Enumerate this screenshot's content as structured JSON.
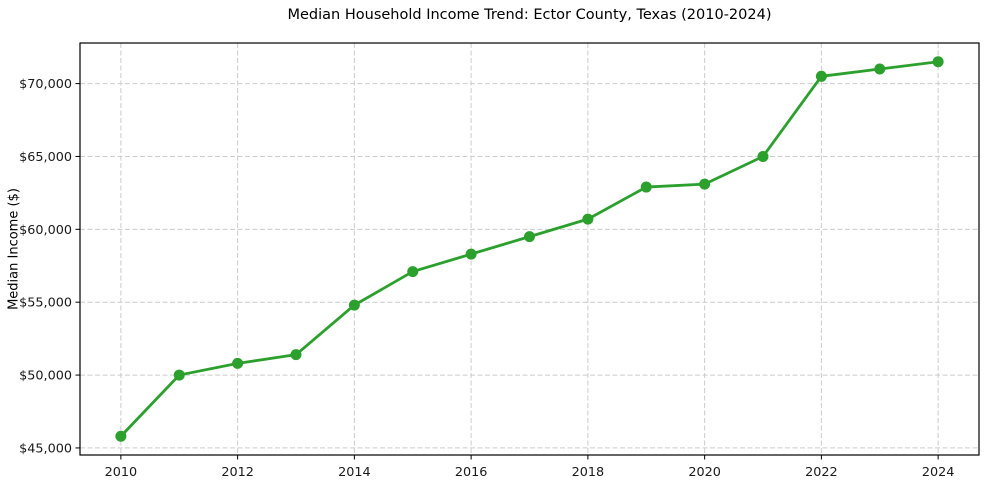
{
  "chart_data": {
    "type": "line",
    "title": "Median Household Income Trend: Ector County, Texas (2010-2024)",
    "ylabel": "Median Income ($)",
    "xlabel": "",
    "x": [
      2010,
      2011,
      2012,
      2013,
      2014,
      2015,
      2016,
      2017,
      2018,
      2019,
      2020,
      2021,
      2022,
      2023,
      2024
    ],
    "values": [
      45800,
      50000,
      50800,
      51400,
      54800,
      57100,
      58300,
      59500,
      60700,
      62900,
      63100,
      65000,
      70500,
      71000,
      71500
    ],
    "xlim": [
      2009.3,
      2024.7
    ],
    "ylim": [
      44515,
      72785
    ],
    "xticks": [
      2010,
      2012,
      2014,
      2016,
      2018,
      2020,
      2022,
      2024
    ],
    "xtick_labels": [
      "2010",
      "2012",
      "2014",
      "2016",
      "2018",
      "2020",
      "2022",
      "2024"
    ],
    "yticks": [
      45000,
      50000,
      55000,
      60000,
      65000,
      70000
    ],
    "ytick_labels": [
      "$45,000",
      "$50,000",
      "$55,000",
      "$60,000",
      "$65,000",
      "$70,000"
    ],
    "grid": true,
    "legend": false,
    "colors": {
      "line": "#2ca02c",
      "marker": "#2ca02c",
      "grid": "#cccccc",
      "frame": "#000000",
      "text": "#1a1a1a"
    }
  }
}
